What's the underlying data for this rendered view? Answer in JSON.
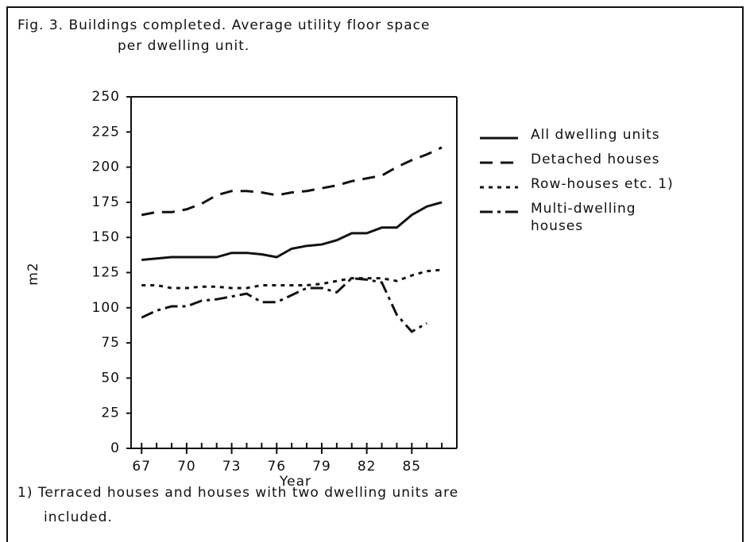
{
  "chart_data": {
    "type": "line",
    "title": [
      "Fig. 3. Buildings completed. Average utility floor space",
      "per dwelling unit."
    ],
    "x_label": "Year",
    "y_label": "m2",
    "footnote": [
      "1) Terraced houses and houses with two dwelling units are",
      "included."
    ],
    "x": [
      67,
      68,
      69,
      70,
      71,
      72,
      73,
      74,
      75,
      76,
      77,
      78,
      79,
      80,
      81,
      82,
      83,
      84,
      85,
      86,
      87
    ],
    "series": [
      {
        "name": "All dwelling units",
        "color": "#111111",
        "dash": "none",
        "values": [
          134,
          135,
          136,
          136,
          136,
          136,
          139,
          139,
          138,
          136,
          142,
          144,
          145,
          148,
          153,
          153,
          157,
          157,
          166,
          172,
          175
        ]
      },
      {
        "name": "Detached houses",
        "color": "#111111",
        "dash": "16 10",
        "values": [
          166,
          168,
          168,
          170,
          174,
          180,
          183,
          183,
          182,
          180,
          182,
          183,
          185,
          187,
          190,
          192,
          194,
          200,
          205,
          209,
          214
        ]
      },
      {
        "name": "Row-houses etc. 1)",
        "color": "#111111",
        "dash": "5 6",
        "values": [
          116,
          116,
          114,
          114,
          115,
          115,
          114,
          114,
          116,
          116,
          116,
          116,
          117,
          119,
          121,
          121,
          121,
          119,
          123,
          126,
          127
        ]
      },
      {
        "name": [
          "Multi-dwelling",
          "houses"
        ],
        "color": "#111111",
        "dash": "16 6 4 6",
        "values": [
          93,
          98,
          101,
          101,
          105,
          106,
          108,
          110,
          104,
          104,
          109,
          114,
          114,
          111,
          121,
          120,
          118,
          95,
          83,
          89,
          null
        ]
      }
    ],
    "xlim": [
      66.3,
      88
    ],
    "ylim": [
      0,
      250
    ],
    "xticks": [
      67,
      70,
      73,
      76,
      79,
      82,
      85
    ],
    "xminor_ticks": [
      67,
      68,
      69,
      70,
      71,
      72,
      73,
      74,
      75,
      76,
      77,
      78,
      79,
      80,
      81,
      82,
      83,
      84,
      85,
      86,
      87
    ],
    "yticks": [
      0,
      25,
      50,
      75,
      100,
      125,
      150,
      175,
      200,
      225,
      250
    ]
  }
}
